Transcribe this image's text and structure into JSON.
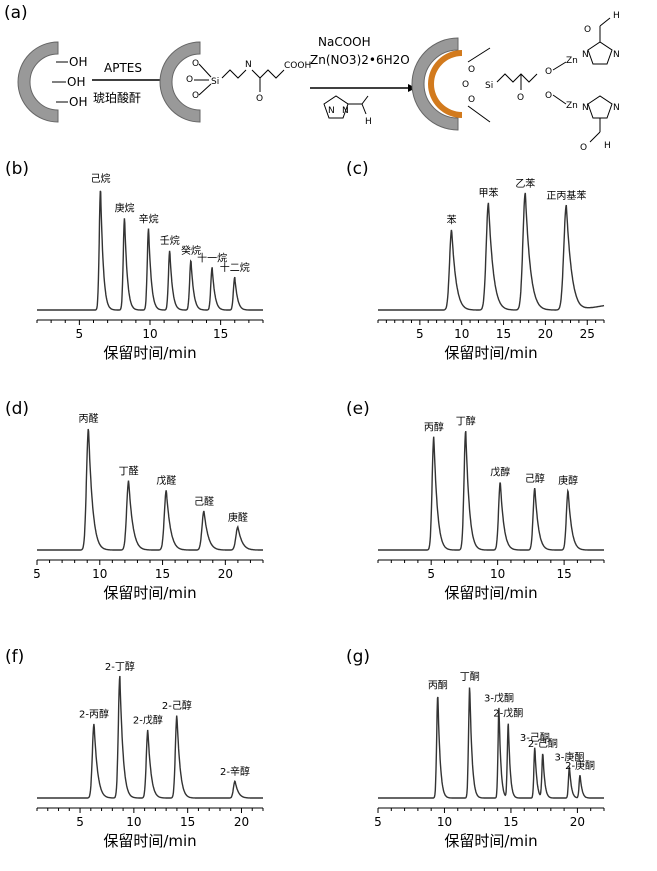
{
  "panel_a": {
    "letter": "(a)",
    "step1_top": "APTES",
    "step1_bottom": "琥珀酸酐",
    "step2_line1": "NaCOOH",
    "step2_line2": "Zn(NO3)2•6H2O",
    "labels": {
      "oh": "OH",
      "o": "O",
      "si": "Si",
      "n": "N",
      "h": "H",
      "zn": "Zn",
      "cooh": "COOH"
    }
  },
  "chart_data": [
    {
      "id": "b",
      "letter": "(b)",
      "type": "line",
      "xlabel": "保留时间/min",
      "xlim": [
        2,
        18
      ],
      "xticks": [
        5,
        10,
        15
      ],
      "peaks": [
        {
          "label": "己烷",
          "x": 6.5,
          "y": 1.0,
          "w": 0.13
        },
        {
          "label": "庚烷",
          "x": 8.2,
          "y": 0.76,
          "w": 0.13
        },
        {
          "label": "辛烷",
          "x": 9.9,
          "y": 0.67,
          "w": 0.13
        },
        {
          "label": "壬烷",
          "x": 11.4,
          "y": 0.49,
          "w": 0.13
        },
        {
          "label": "癸烷",
          "x": 12.9,
          "y": 0.41,
          "w": 0.13
        },
        {
          "label": "十一烷",
          "x": 14.4,
          "y": 0.35,
          "w": 0.13
        },
        {
          "label": "十二烷",
          "x": 16.0,
          "y": 0.27,
          "w": 0.13
        }
      ]
    },
    {
      "id": "c",
      "letter": "(c)",
      "type": "line",
      "xlabel": "保留时间/min",
      "xlim": [
        0,
        27
      ],
      "xticks": [
        5,
        10,
        15,
        20,
        25
      ],
      "peaks": [
        {
          "label": "苯",
          "x": 8.8,
          "y": 0.66,
          "w": 0.35
        },
        {
          "label": "甲苯",
          "x": 13.2,
          "y": 0.88,
          "w": 0.38
        },
        {
          "label": "乙苯",
          "x": 17.6,
          "y": 0.96,
          "w": 0.4
        },
        {
          "label": "正丙基苯",
          "x": 22.5,
          "y": 0.86,
          "w": 0.42
        }
      ]
    },
    {
      "id": "d",
      "letter": "(d)",
      "type": "line",
      "xlabel": "保留时间/min",
      "xlim": [
        5,
        23
      ],
      "xticks": [
        5,
        10,
        15,
        20
      ],
      "peaks": [
        {
          "label": "丙醛",
          "x": 9.1,
          "y": 1.0,
          "w": 0.22
        },
        {
          "label": "丁醛",
          "x": 12.3,
          "y": 0.57,
          "w": 0.22
        },
        {
          "label": "戊醛",
          "x": 15.3,
          "y": 0.49,
          "w": 0.22
        },
        {
          "label": "己醛",
          "x": 18.3,
          "y": 0.32,
          "w": 0.22
        },
        {
          "label": "庚醛",
          "x": 21.0,
          "y": 0.19,
          "w": 0.22
        }
      ]
    },
    {
      "id": "e",
      "letter": "(e)",
      "type": "line",
      "xlabel": "保留时间/min",
      "xlim": [
        1,
        18
      ],
      "xticks": [
        5,
        10,
        15
      ],
      "peaks": [
        {
          "label": "丙醇",
          "x": 5.2,
          "y": 0.93,
          "w": 0.18
        },
        {
          "label": "丁醇",
          "x": 7.6,
          "y": 0.98,
          "w": 0.18
        },
        {
          "label": "戊醇",
          "x": 10.2,
          "y": 0.56,
          "w": 0.18
        },
        {
          "label": "己醇",
          "x": 12.8,
          "y": 0.51,
          "w": 0.18
        },
        {
          "label": "庚醇",
          "x": 15.3,
          "y": 0.49,
          "w": 0.18
        }
      ]
    },
    {
      "id": "f",
      "letter": "(f)",
      "type": "line",
      "xlabel": "保留时间/min",
      "xlim": [
        1,
        22
      ],
      "xticks": [
        5,
        10,
        15,
        20
      ],
      "peaks": [
        {
          "label": "2-丙醇",
          "x": 6.3,
          "y": 0.61,
          "w": 0.22
        },
        {
          "label": "2-丁醇",
          "x": 8.7,
          "y": 1.0,
          "w": 0.2
        },
        {
          "label": "2-戊醇",
          "x": 11.3,
          "y": 0.56,
          "w": 0.2
        },
        {
          "label": "2-己醇",
          "x": 14.0,
          "y": 0.68,
          "w": 0.2
        },
        {
          "label": "2-辛醇",
          "x": 19.4,
          "y": 0.14,
          "w": 0.2
        }
      ]
    },
    {
      "id": "g",
      "letter": "(g)",
      "type": "line",
      "xlabel": "保留时间/min",
      "xlim": [
        5,
        22
      ],
      "xticks": [
        5,
        10,
        15,
        20
      ],
      "peaks": [
        {
          "label": "丙酮",
          "x": 9.5,
          "y": 0.85,
          "w": 0.12
        },
        {
          "label": "丁酮",
          "x": 11.9,
          "y": 0.92,
          "w": 0.12
        },
        {
          "label": "3-戊酮",
          "x": 14.1,
          "y": 0.74,
          "w": 0.1
        },
        {
          "label": "2-戊酮",
          "x": 14.8,
          "y": 0.62,
          "w": 0.1
        },
        {
          "label": "3-己酮",
          "x": 16.8,
          "y": 0.42,
          "w": 0.1
        },
        {
          "label": "2-己酮",
          "x": 17.4,
          "y": 0.37,
          "w": 0.1
        },
        {
          "label": "3-庚酮",
          "x": 19.4,
          "y": 0.26,
          "w": 0.1
        },
        {
          "label": "2-庚酮",
          "x": 20.2,
          "y": 0.19,
          "w": 0.1
        }
      ]
    }
  ]
}
